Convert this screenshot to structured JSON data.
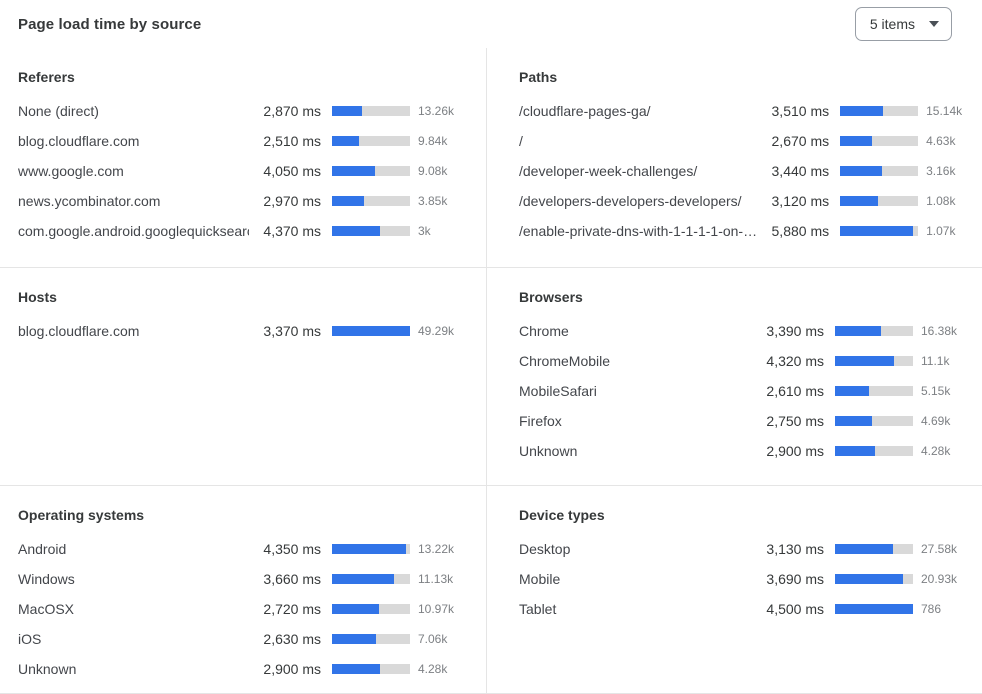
{
  "header": {
    "title": "Page load time by source",
    "items_select": {
      "value": "5 items"
    }
  },
  "colors": {
    "bar_fill": "#3174e8",
    "bar_track": "#d9d9d9",
    "divider": "#e5e5e5",
    "text_primary": "#36393a",
    "text_secondary": "#7d8084",
    "dropdown_border": "#989ea6"
  },
  "chart_data": [
    {
      "type": "bar",
      "id": "referers",
      "title": "Referers",
      "unit": "ms",
      "categories": [
        "None (direct)",
        "blog.cloudflare.com",
        "www.google.com",
        "news.ycombinator.com",
        "com.google.android.googlequicksearc…"
      ],
      "values_ms": [
        2870,
        2510,
        4050,
        2970,
        4370
      ],
      "display_ms": [
        "2,870 ms",
        "2,510 ms",
        "4,050 ms",
        "2,970 ms",
        "4,370 ms"
      ],
      "counts": [
        "13.26k",
        "9.84k",
        "9.08k",
        "3.85k",
        "3k"
      ],
      "bar_pct": [
        39,
        34,
        55,
        41,
        61
      ]
    },
    {
      "type": "bar",
      "id": "paths",
      "title": "Paths",
      "unit": "ms",
      "categories": [
        "/cloudflare-pages-ga/",
        "/",
        "/developer-week-challenges/",
        "/developers-developers-developers/",
        "/enable-private-dns-with-1-1-1-1-on-…"
      ],
      "values_ms": [
        3510,
        2670,
        3440,
        3120,
        5880
      ],
      "display_ms": [
        "3,510 ms",
        "2,670 ms",
        "3,440 ms",
        "3,120 ms",
        "5,880 ms"
      ],
      "counts": [
        "15.14k",
        "4.63k",
        "3.16k",
        "1.08k",
        "1.07k"
      ],
      "bar_pct": [
        55,
        41,
        54,
        48,
        93
      ]
    },
    {
      "type": "bar",
      "id": "hosts",
      "title": "Hosts",
      "unit": "ms",
      "categories": [
        "blog.cloudflare.com"
      ],
      "values_ms": [
        3370
      ],
      "display_ms": [
        "3,370 ms"
      ],
      "counts": [
        "49.29k"
      ],
      "bar_pct": [
        100
      ]
    },
    {
      "type": "bar",
      "id": "browsers",
      "title": "Browsers",
      "unit": "ms",
      "categories": [
        "Chrome",
        "ChromeMobile",
        "MobileSafari",
        "Firefox",
        "Unknown"
      ],
      "values_ms": [
        3390,
        4320,
        2610,
        2750,
        2900
      ],
      "display_ms": [
        "3,390 ms",
        "4,320 ms",
        "2,610 ms",
        "2,750 ms",
        "2,900 ms"
      ],
      "counts": [
        "16.38k",
        "11.1k",
        "5.15k",
        "4.69k",
        "4.28k"
      ],
      "bar_pct": [
        59,
        76,
        44,
        47,
        51
      ]
    },
    {
      "type": "bar",
      "id": "operating-systems",
      "title": "Operating systems",
      "unit": "ms",
      "categories": [
        "Android",
        "Windows",
        "MacOSX",
        "iOS",
        "Unknown"
      ],
      "values_ms": [
        4350,
        3660,
        2720,
        2630,
        2900
      ],
      "display_ms": [
        "4,350 ms",
        "3,660 ms",
        "2,720 ms",
        "2,630 ms",
        "2,900 ms"
      ],
      "counts": [
        "13.22k",
        "11.13k",
        "10.97k",
        "7.06k",
        "4.28k"
      ],
      "bar_pct": [
        95,
        79,
        60,
        56,
        62
      ]
    },
    {
      "type": "bar",
      "id": "device-types",
      "title": "Device types",
      "unit": "ms",
      "categories": [
        "Desktop",
        "Mobile",
        "Tablet"
      ],
      "values_ms": [
        3130,
        3690,
        4500
      ],
      "display_ms": [
        "3,130 ms",
        "3,690 ms",
        "4,500 ms"
      ],
      "counts": [
        "27.58k",
        "20.93k",
        "786"
      ],
      "bar_pct": [
        74,
        87,
        100
      ]
    }
  ]
}
